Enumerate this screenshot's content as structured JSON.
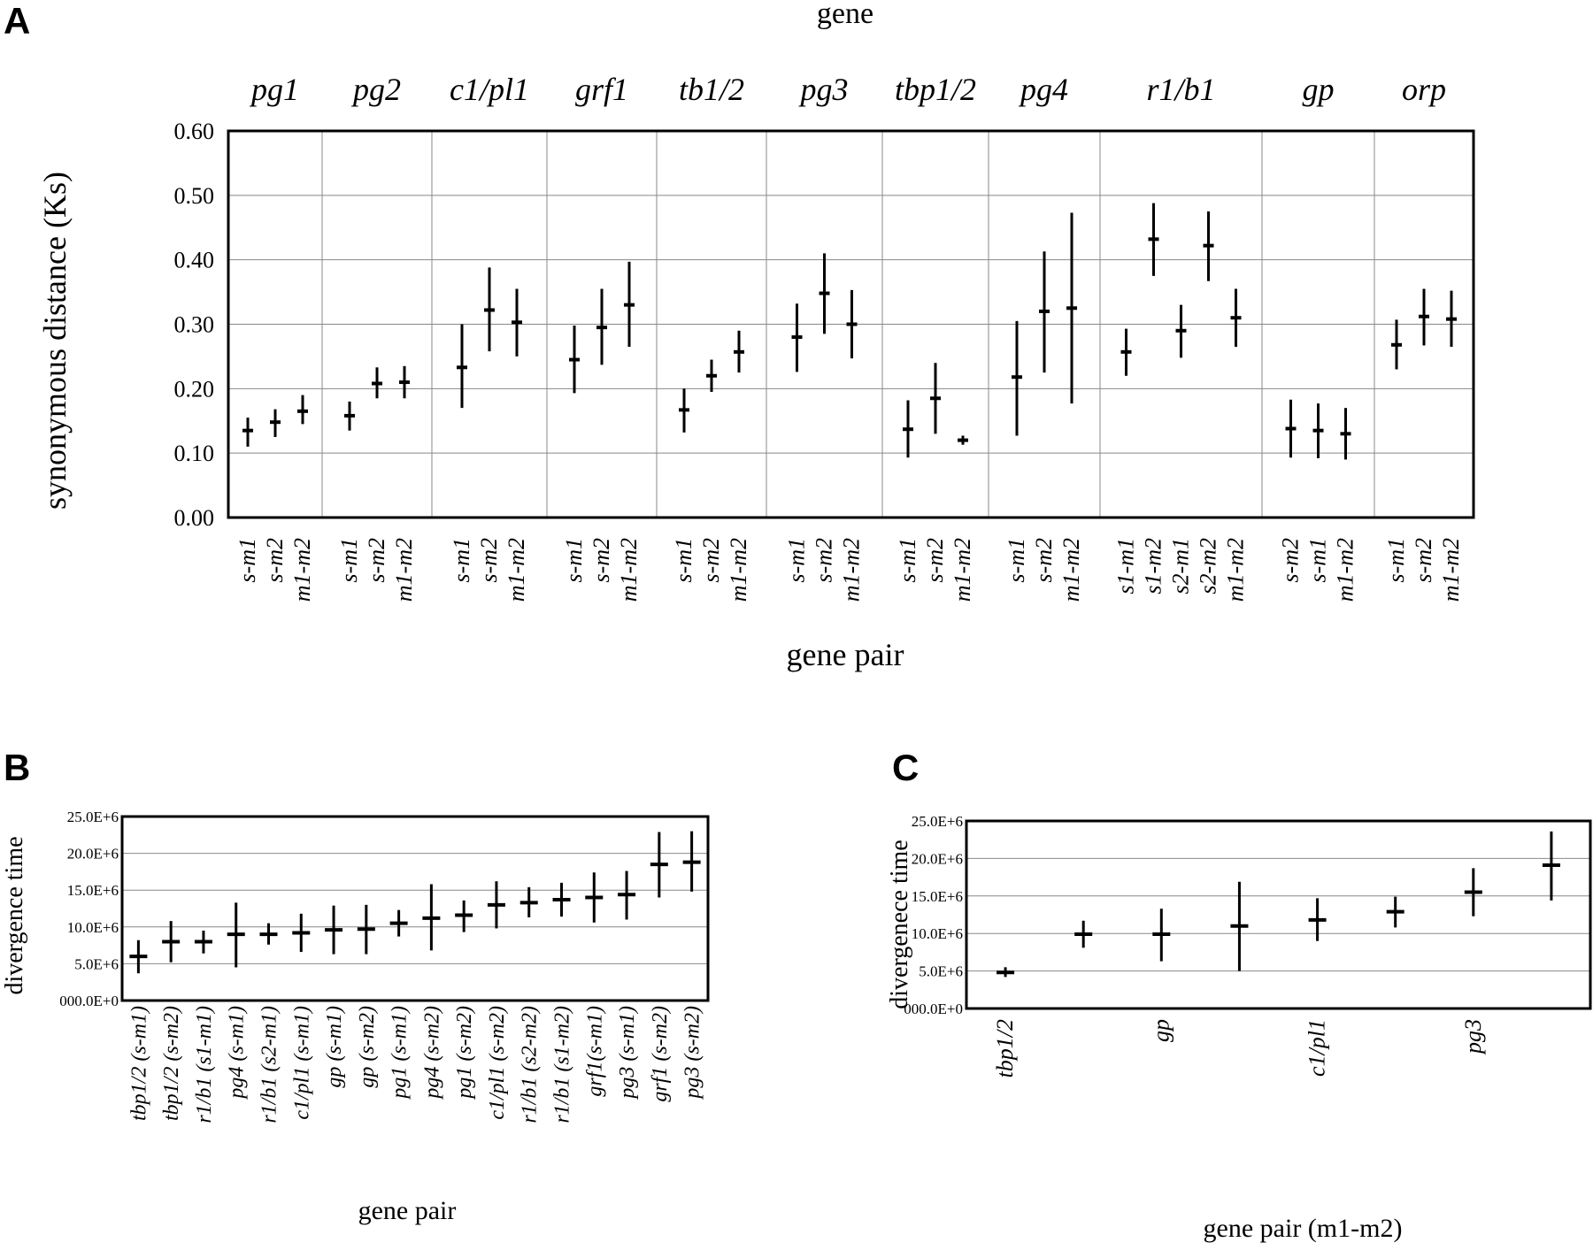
{
  "chart_data": [
    {
      "panel": "A",
      "type": "scatter",
      "error_bars": true,
      "top_label": "gene",
      "xlabel": "gene pair",
      "ylabel": "synonymous distance (Ks)",
      "ylim": [
        0,
        0.6
      ],
      "yticks": [
        "0.00",
        "0.10",
        "0.20",
        "0.30",
        "0.40",
        "0.50",
        "0.60"
      ],
      "grid": true,
      "groups": [
        {
          "gene": "pg1",
          "points": [
            {
              "pair": "s-m1",
              "y": 0.135,
              "low": 0.11,
              "high": 0.155
            },
            {
              "pair": "s-m2",
              "y": 0.148,
              "low": 0.125,
              "high": 0.168
            },
            {
              "pair": "m1-m2",
              "y": 0.165,
              "low": 0.145,
              "high": 0.19
            }
          ]
        },
        {
          "gene": "pg2",
          "points": [
            {
              "pair": "s-m1",
              "y": 0.158,
              "low": 0.135,
              "high": 0.18
            },
            {
              "pair": "s-m2",
              "y": 0.208,
              "low": 0.185,
              "high": 0.233
            },
            {
              "pair": "m1-m2",
              "y": 0.21,
              "low": 0.185,
              "high": 0.235
            }
          ]
        },
        {
          "gene": "c1/pl1",
          "points": [
            {
              "pair": "s-m1",
              "y": 0.233,
              "low": 0.17,
              "high": 0.3
            },
            {
              "pair": "s-m2",
              "y": 0.322,
              "low": 0.258,
              "high": 0.388
            },
            {
              "pair": "m1-m2",
              "y": 0.303,
              "low": 0.25,
              "high": 0.355
            }
          ]
        },
        {
          "gene": "grf1",
          "points": [
            {
              "pair": "s-m1",
              "y": 0.245,
              "low": 0.193,
              "high": 0.298
            },
            {
              "pair": "s-m2",
              "y": 0.295,
              "low": 0.237,
              "high": 0.355
            },
            {
              "pair": "m1-m2",
              "y": 0.33,
              "low": 0.265,
              "high": 0.397
            }
          ]
        },
        {
          "gene": "tb1/2",
          "points": [
            {
              "pair": "s-m1",
              "y": 0.167,
              "low": 0.132,
              "high": 0.2
            },
            {
              "pair": "s-m2",
              "y": 0.22,
              "low": 0.195,
              "high": 0.245
            },
            {
              "pair": "m1-m2",
              "y": 0.257,
              "low": 0.225,
              "high": 0.29
            }
          ]
        },
        {
          "gene": "pg3",
          "points": [
            {
              "pair": "s-m1",
              "y": 0.28,
              "low": 0.226,
              "high": 0.332
            },
            {
              "pair": "s-m2",
              "y": 0.348,
              "low": 0.285,
              "high": 0.41
            },
            {
              "pair": "m1-m2",
              "y": 0.3,
              "low": 0.247,
              "high": 0.353
            }
          ]
        },
        {
          "gene": "tbp1/2",
          "points": [
            {
              "pair": "s-m1",
              "y": 0.137,
              "low": 0.093,
              "high": 0.182
            },
            {
              "pair": "s-m2",
              "y": 0.185,
              "low": 0.13,
              "high": 0.24
            },
            {
              "pair": "m1-m2",
              "y": 0.12,
              "low": 0.113,
              "high": 0.127
            }
          ]
        },
        {
          "gene": "pg4",
          "points": [
            {
              "pair": "s-m1",
              "y": 0.218,
              "low": 0.127,
              "high": 0.305
            },
            {
              "pair": "s-m2",
              "y": 0.32,
              "low": 0.225,
              "high": 0.413
            },
            {
              "pair": "m1-m2",
              "y": 0.325,
              "low": 0.177,
              "high": 0.473
            }
          ]
        },
        {
          "gene": "r1/b1",
          "points": [
            {
              "pair": "s1-m1",
              "y": 0.257,
              "low": 0.22,
              "high": 0.293
            },
            {
              "pair": "s1-m2",
              "y": 0.432,
              "low": 0.375,
              "high": 0.488
            },
            {
              "pair": "s2-m1",
              "y": 0.29,
              "low": 0.248,
              "high": 0.33
            },
            {
              "pair": "s2-m2",
              "y": 0.422,
              "low": 0.367,
              "high": 0.475
            },
            {
              "pair": "m1-m2",
              "y": 0.31,
              "low": 0.265,
              "high": 0.355
            }
          ]
        },
        {
          "gene": "gp",
          "points": [
            {
              "pair": "s-m2",
              "y": 0.138,
              "low": 0.093,
              "high": 0.183
            },
            {
              "pair": "s-m1",
              "y": 0.135,
              "low": 0.092,
              "high": 0.177
            },
            {
              "pair": "m1-m2",
              "y": 0.13,
              "low": 0.09,
              "high": 0.17
            }
          ]
        },
        {
          "gene": "orp",
          "points": [
            {
              "pair": "s-m1",
              "y": 0.268,
              "low": 0.23,
              "high": 0.307
            },
            {
              "pair": "s-m2",
              "y": 0.312,
              "low": 0.267,
              "high": 0.355
            },
            {
              "pair": "m1-m2",
              "y": 0.308,
              "low": 0.265,
              "high": 0.352
            }
          ]
        }
      ]
    },
    {
      "panel": "B",
      "type": "scatter",
      "error_bars": true,
      "xlabel": "gene pair",
      "ylabel": "divergence time",
      "ylim": [
        0,
        25000000
      ],
      "yticks": [
        "000.0E+0",
        "5.0E+6",
        "10.0E+6",
        "15.0E+6",
        "20.0E+6",
        "25.0E+6"
      ],
      "grid": true,
      "categories": [
        "tbp1/2 (s-m1)",
        "tbp1/2 (s-m2)",
        "r1/b1 (s1-m1)",
        "pg4 (s-m1)",
        "r1/b1 (s2-m1)",
        "c1/pl1 (s-m1)",
        "gp (s-m1)",
        "gp (s-m2)",
        "pg1 (s-m1)",
        "pg4 (s-m2)",
        "pg1 (s-m2)",
        "c1/pl1 (s-m2)",
        "r1/b1 (s2-m2)",
        "r1/b1 (s1-m2)",
        "grf1(s-m1)",
        "pg3 (s-m1)",
        "grf1 (s-m2)",
        "pg3 (s-m2)"
      ],
      "values": [
        6000000,
        8000000,
        8000000,
        9000000,
        9000000,
        9200000,
        9600000,
        9700000,
        10500000,
        11200000,
        11600000,
        13000000,
        13300000,
        13700000,
        14000000,
        14400000,
        18500000,
        18800000
      ],
      "low": [
        3700000,
        5200000,
        6400000,
        4500000,
        7600000,
        6600000,
        6300000,
        6300000,
        8700000,
        6800000,
        9300000,
        9800000,
        11300000,
        11400000,
        10600000,
        11000000,
        14000000,
        14800000
      ],
      "high": [
        8200000,
        10800000,
        9500000,
        13300000,
        10500000,
        11800000,
        12900000,
        13000000,
        12300000,
        15800000,
        13600000,
        16200000,
        15400000,
        16000000,
        17400000,
        17600000,
        22900000,
        23000000
      ]
    },
    {
      "panel": "C",
      "type": "scatter",
      "error_bars": true,
      "xlabel": "gene pair (m1-m2)",
      "ylabel": "divergenece time",
      "ylim": [
        0,
        25000000
      ],
      "yticks": [
        "000.0E+0",
        "5.0E+6",
        "10.0E+6",
        "15.0E+6",
        "20.0E+6",
        "25.0E+6"
      ],
      "grid": true,
      "categories": [
        "tbp1/2",
        "",
        "gp",
        "",
        "c1/pl1",
        "",
        "pg3",
        ""
      ],
      "values": [
        4800000,
        9900000,
        9900000,
        11000000,
        11800000,
        12900000,
        15500000,
        19100000
      ],
      "low": [
        4200000,
        8100000,
        6300000,
        5000000,
        9000000,
        10800000,
        12300000,
        14400000
      ],
      "high": [
        5500000,
        11700000,
        13300000,
        16900000,
        14700000,
        14900000,
        18700000,
        23600000
      ]
    }
  ]
}
